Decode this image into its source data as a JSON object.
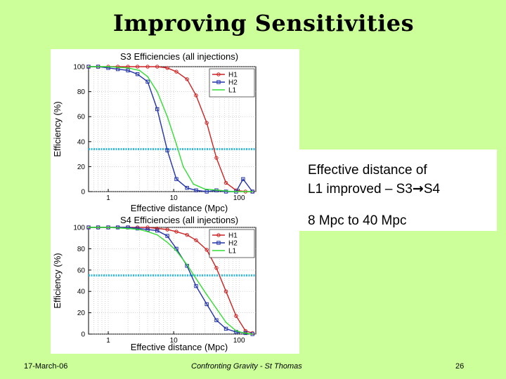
{
  "slide": {
    "title": "Improving Sensitivities",
    "info_line1": "Effective distance of",
    "info_line2_prefix": "L1 improved – S3",
    "info_line2_arrow": "→",
    "info_line2_suffix": "S4",
    "info_line3": "8 Mpc to 40 Mpc",
    "footer_date": "17-March-06",
    "footer_center": "Confronting Gravity - St Thomas",
    "footer_page": "26"
  },
  "colors": {
    "H1": "#cc2222",
    "H2": "#2233aa",
    "L1": "#33dd33",
    "threshold": "#33bbdd",
    "background": "#ccff99"
  },
  "chart_data": [
    {
      "type": "line",
      "title": "S3 Efficiencies (all injections)",
      "xlabel": "Effective distance (Mpc)",
      "ylabel": "Efficiency (%)",
      "xscale": "log",
      "xlim": [
        0.5,
        180
      ],
      "ylim": [
        0,
        100
      ],
      "xticks": [
        1,
        10,
        100
      ],
      "xtick_labels": [
        "1",
        "10",
        "100"
      ],
      "yticks": [
        0,
        20,
        40,
        60,
        80,
        100
      ],
      "ytick_labels": [
        "0",
        "20",
        "40",
        "60",
        "80",
        "100"
      ],
      "grid": true,
      "legend": "top-right",
      "threshold_y": 34,
      "series": [
        {
          "name": "H1",
          "color": "#cc2222",
          "marker": "circle",
          "x": [
            0.5,
            0.7,
            1,
            1.4,
            2,
            2.8,
            4,
            5.6,
            8,
            11,
            16,
            22,
            32,
            45,
            63,
            90,
            125,
            160
          ],
          "y": [
            100,
            100,
            100,
            100,
            100,
            100,
            100,
            100,
            99,
            96,
            90,
            77,
            55,
            27,
            7,
            1,
            0,
            0
          ]
        },
        {
          "name": "H2",
          "color": "#2233aa",
          "marker": "square",
          "x": [
            0.5,
            0.7,
            1,
            1.4,
            2,
            2.8,
            4,
            5.6,
            8,
            11,
            16,
            22,
            32,
            45,
            63,
            90,
            115,
            160
          ],
          "y": [
            100,
            100,
            99,
            98,
            97,
            94,
            88,
            66,
            33,
            10,
            3,
            1,
            0,
            1,
            0,
            0,
            10,
            0
          ]
        },
        {
          "name": "L1",
          "color": "#33dd33",
          "marker": "none",
          "x": [
            0.5,
            1,
            2,
            3,
            4,
            5.6,
            8,
            11,
            14,
            20,
            30,
            50,
            80,
            120,
            160
          ],
          "y": [
            100,
            100,
            99,
            97,
            92,
            80,
            60,
            38,
            20,
            6,
            2,
            1,
            0,
            0,
            0
          ]
        }
      ]
    },
    {
      "type": "line",
      "title": "S4 Efficiencies (all injections)",
      "xlabel": "Effective distance (Mpc)",
      "ylabel": "Efficiency (%)",
      "xscale": "log",
      "xlim": [
        0.5,
        180
      ],
      "ylim": [
        0,
        100
      ],
      "xticks": [
        1,
        10,
        100
      ],
      "xtick_labels": [
        "1",
        "10",
        "100"
      ],
      "yticks": [
        0,
        20,
        40,
        60,
        80,
        100
      ],
      "ytick_labels": [
        "0",
        "20",
        "40",
        "60",
        "80",
        "100"
      ],
      "grid": true,
      "legend": "top-right",
      "threshold_y": 55,
      "series": [
        {
          "name": "H1",
          "color": "#cc2222",
          "marker": "circle",
          "x": [
            0.5,
            0.7,
            1,
            1.4,
            2,
            2.8,
            4,
            5.6,
            8,
            11,
            16,
            22,
            32,
            45,
            63,
            90,
            125,
            160
          ],
          "y": [
            100,
            100,
            100,
            100,
            100,
            100,
            100,
            99,
            98,
            96,
            93,
            88,
            79,
            62,
            40,
            17,
            3,
            1
          ]
        },
        {
          "name": "H2",
          "color": "#2233aa",
          "marker": "square",
          "x": [
            0.5,
            0.7,
            1,
            1.4,
            2,
            2.8,
            4,
            5.6,
            8,
            11,
            16,
            22,
            32,
            45,
            63,
            90,
            125,
            160
          ],
          "y": [
            100,
            100,
            100,
            100,
            100,
            99,
            98,
            97,
            92,
            80,
            64,
            45,
            28,
            13,
            5,
            2,
            1,
            0
          ]
        },
        {
          "name": "L1",
          "color": "#33dd33",
          "marker": "none",
          "x": [
            0.5,
            1,
            2,
            3,
            4,
            5.6,
            8,
            11,
            16,
            22,
            32,
            45,
            63,
            90,
            120,
            160
          ],
          "y": [
            100,
            100,
            99,
            98,
            96,
            93,
            86,
            78,
            65,
            52,
            37,
            24,
            11,
            3,
            1,
            0
          ]
        }
      ]
    }
  ]
}
